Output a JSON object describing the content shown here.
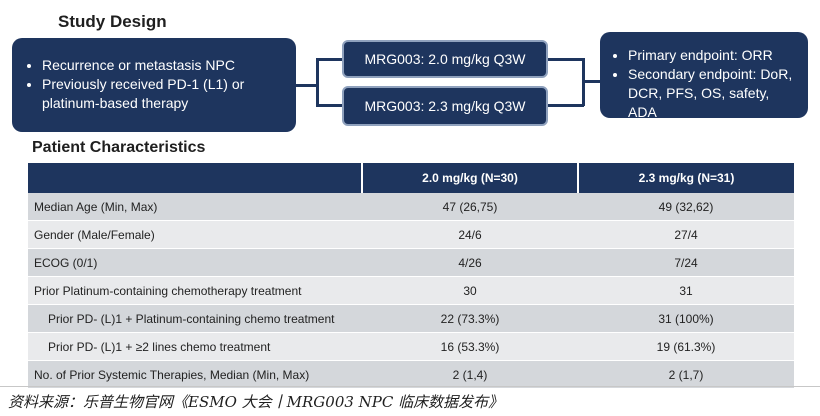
{
  "study_design": {
    "title": "Study Design",
    "population": [
      "Recurrence or metastasis NPC",
      "Previously received PD-1 (L1) or platinum-based therapy"
    ],
    "arms": [
      "MRG003: 2.0 mg/kg Q3W",
      "MRG003: 2.3 mg/kg Q3W"
    ],
    "endpoints": [
      "Primary endpoint: ORR",
      "Secondary endpoint: DoR, DCR, PFS, OS, safety, ADA"
    ]
  },
  "patient_characteristics": {
    "title": "Patient Characteristics",
    "columns": [
      "",
      "2.0 mg/kg (N=30)",
      "2.3 mg/kg (N=31)"
    ],
    "rows": [
      {
        "label": "Median Age (Min, Max)",
        "v1": "47 (26,75)",
        "v2": "49 (32,62)"
      },
      {
        "label": "Gender (Male/Female)",
        "v1": "24/6",
        "v2": "27/4"
      },
      {
        "label": "ECOG (0/1)",
        "v1": "4/26",
        "v2": "7/24"
      },
      {
        "label": "Prior Platinum-containing chemotherapy treatment",
        "v1": "30",
        "v2": "31"
      },
      {
        "label": "Prior PD- (L)1 + Platinum-containing chemo treatment",
        "v1": "22 (73.3%)",
        "v2": "31 (100%)"
      },
      {
        "label": "Prior PD- (L)1 + ≥2 lines chemo treatment",
        "v1": "16 (53.3%)",
        "v2": "19 (61.3%)"
      },
      {
        "label": "No. of Prior Systemic Therapies, Median (Min, Max)",
        "v1": "2 (1,4)",
        "v2": "2 (1,7)"
      }
    ]
  },
  "footer": {
    "source": "资料来源：乐普生物官网《ESMO 大会丨MRG003 NPC 临床数据发布》"
  },
  "colors": {
    "navy": "#1e355e",
    "row_dark": "#d4d7db",
    "row_light": "#e9eaec"
  }
}
